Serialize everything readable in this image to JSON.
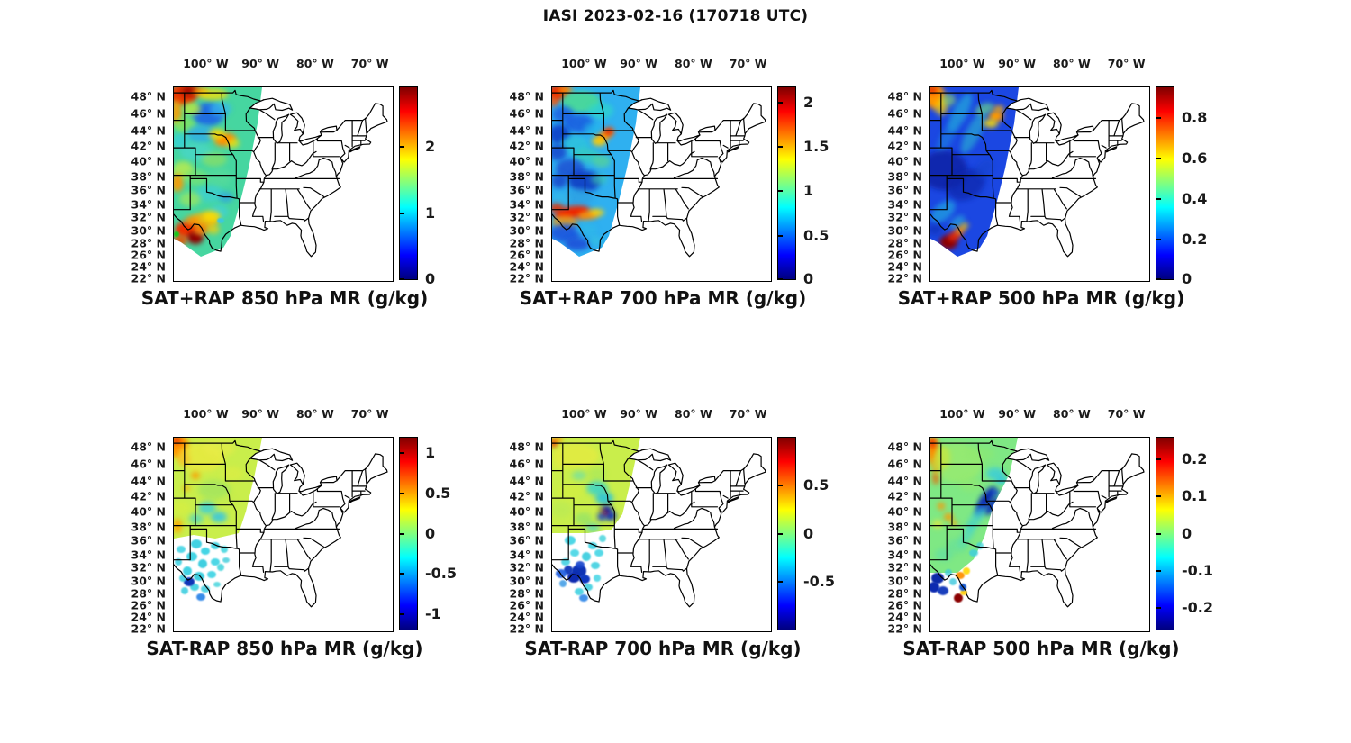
{
  "title": "IASI 2023-02-16 (170718 UTC)",
  "colormap": {
    "name": "jet",
    "stops": [
      "#00007f",
      "#0000ff",
      "#00ffff",
      "#80ff80",
      "#ffff00",
      "#ff0000",
      "#7f0000"
    ]
  },
  "axes": {
    "lon_labels": [
      {
        "t": "100° W",
        "p": 15
      },
      {
        "t": "90° W",
        "p": 40
      },
      {
        "t": "80° W",
        "p": 65
      },
      {
        "t": "70° W",
        "p": 90
      }
    ],
    "lat_labels": [
      {
        "t": "48° N",
        "p": 5.1
      },
      {
        "t": "46° N",
        "p": 14.1
      },
      {
        "t": "44° N",
        "p": 22.6
      },
      {
        "t": "42° N",
        "p": 30.8
      },
      {
        "t": "40° N",
        "p": 38.7
      },
      {
        "t": "38° N",
        "p": 46.3
      },
      {
        "t": "36° N",
        "p": 53.6
      },
      {
        "t": "34° N",
        "p": 60.7
      },
      {
        "t": "32° N",
        "p": 67.6
      },
      {
        "t": "30° N",
        "p": 74.3
      },
      {
        "t": "28° N",
        "p": 80.8
      },
      {
        "t": "26° N",
        "p": 87.1
      },
      {
        "t": "24° N",
        "p": 93.2
      },
      {
        "t": "22° N",
        "p": 99.2
      }
    ]
  },
  "panels": [
    {
      "id": "sat-plus-rap-850",
      "title": "SAT+RAP 850 hPa MR (g/kg)",
      "level_hPa": 850,
      "units": "g/kg",
      "colorbar": {
        "range": [
          0,
          2.9
        ],
        "ticks": [
          {
            "t": "0",
            "p": 0.5
          },
          {
            "t": "1",
            "p": 34.5
          },
          {
            "t": "2",
            "p": 69
          }
        ]
      }
    },
    {
      "id": "sat-plus-rap-700",
      "title": "SAT+RAP 700 hPa MR (g/kg)",
      "level_hPa": 700,
      "units": "g/kg",
      "colorbar": {
        "range": [
          0,
          2.2
        ],
        "ticks": [
          {
            "t": "0",
            "p": 0.5
          },
          {
            "t": "0.5",
            "p": 23
          },
          {
            "t": "1",
            "p": 46
          },
          {
            "t": "1.5",
            "p": 69
          },
          {
            "t": "2",
            "p": 91.7
          }
        ]
      }
    },
    {
      "id": "sat-plus-rap-500",
      "title": "SAT+RAP 500 hPa MR (g/kg)",
      "level_hPa": 500,
      "units": "g/kg",
      "colorbar": {
        "range": [
          0,
          0.96
        ],
        "ticks": [
          {
            "t": "0",
            "p": 0.5
          },
          {
            "t": "0.2",
            "p": 21
          },
          {
            "t": "0.4",
            "p": 41.8
          },
          {
            "t": "0.6",
            "p": 62.6
          },
          {
            "t": "0.8",
            "p": 83.5
          }
        ]
      }
    },
    {
      "id": "sat-minus-rap-850",
      "title": "SAT-RAP 850 hPa MR (g/kg)",
      "level_hPa": 850,
      "units": "g/kg",
      "colorbar": {
        "range": [
          -1.2,
          1.2
        ],
        "ticks": [
          {
            "t": "-1",
            "p": 8.3
          },
          {
            "t": "-0.5",
            "p": 29.2
          },
          {
            "t": "0",
            "p": 50
          },
          {
            "t": "0.5",
            "p": 70.8
          },
          {
            "t": "1",
            "p": 91.7
          }
        ]
      }
    },
    {
      "id": "sat-minus-rap-700",
      "title": "SAT-RAP 700 hPa MR (g/kg)",
      "level_hPa": 700,
      "units": "g/kg",
      "colorbar": {
        "range": [
          -0.95,
          0.95
        ],
        "ticks": [
          {
            "t": "-0.5",
            "p": 25
          },
          {
            "t": "0",
            "p": 50
          },
          {
            "t": "0.5",
            "p": 75
          }
        ]
      }
    },
    {
      "id": "sat-minus-rap-500",
      "title": "SAT-RAP 500 hPa MR (g/kg)",
      "level_hPa": 500,
      "units": "g/kg",
      "colorbar": {
        "range": [
          -0.26,
          0.26
        ],
        "ticks": [
          {
            "t": "-0.2",
            "p": 11.8
          },
          {
            "t": "-0.1",
            "p": 30.9
          },
          {
            "t": "0",
            "p": 50
          },
          {
            "t": "0.1",
            "p": 69.1
          },
          {
            "t": "0.2",
            "p": 88.2
          }
        ]
      }
    }
  ]
}
